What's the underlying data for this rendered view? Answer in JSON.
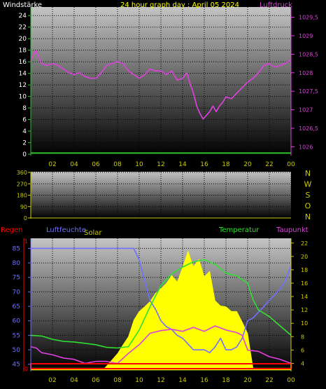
{
  "chart_data": [
    {
      "type": "line",
      "title": "24 hour graph day : April 05 2024",
      "left_axis_label": "Windstärke",
      "right_axis_label": "Luftdruck",
      "x_ticks": [
        "02",
        "04",
        "06",
        "08",
        "10",
        "12",
        "14",
        "16",
        "18",
        "20",
        "22",
        "00"
      ],
      "left_ticks": [
        "0",
        "2",
        "4",
        "6",
        "8",
        "10",
        "12",
        "14",
        "16",
        "18",
        "20",
        "22",
        "24"
      ],
      "right_ticks": [
        "1026",
        "1026,5",
        "1027",
        "1027,5",
        "1028",
        "1028,5",
        "1029",
        "1029,5"
      ],
      "left_ylim": [
        0,
        25
      ],
      "right_ylim": [
        1025.8,
        1029.7
      ],
      "colors": {
        "pressure": "#e040e0",
        "wind": "#30c030",
        "title": "#ffff00",
        "left": "#ffffff"
      },
      "series": [
        {
          "name": "Luftdruck",
          "axis": "right",
          "x": [
            0,
            0.25,
            0.5,
            0.75,
            1,
            1.5,
            2,
            2.5,
            3,
            3.5,
            4,
            4.5,
            5,
            5.5,
            6,
            6.5,
            7,
            7.5,
            8,
            8.5,
            9,
            9.5,
            10,
            10.5,
            11,
            11.5,
            12,
            12.5,
            13,
            13.5,
            14,
            14.4,
            14.7,
            15,
            15.3,
            15.6,
            15.9,
            16.2,
            16.5,
            16.8,
            17.1,
            17.4,
            17.7,
            18,
            18.5,
            19,
            19.5,
            20,
            20.5,
            21,
            21.5,
            22,
            22.5,
            23,
            23.5,
            24
          ],
          "values": [
            1028.3,
            1028.5,
            1028.6,
            1028.4,
            1028.25,
            1028.2,
            1028.25,
            1028.2,
            1028.1,
            1028.0,
            1027.95,
            1028.0,
            1027.9,
            1027.85,
            1027.85,
            1028.0,
            1028.2,
            1028.25,
            1028.3,
            1028.25,
            1028.05,
            1027.95,
            1027.85,
            1027.95,
            1028.1,
            1028.05,
            1028.05,
            1027.95,
            1028.05,
            1027.8,
            1027.85,
            1028.0,
            1027.7,
            1027.45,
            1027.1,
            1026.9,
            1026.75,
            1026.85,
            1026.95,
            1027.1,
            1026.95,
            1027.1,
            1027.2,
            1027.35,
            1027.3,
            1027.45,
            1027.6,
            1027.75,
            1027.85,
            1028.0,
            1028.2,
            1028.25,
            1028.15,
            1028.2,
            1028.25,
            1028.35
          ]
        },
        {
          "name": "Windstärke",
          "axis": "left",
          "x": [
            0,
            24
          ],
          "values": [
            0.2,
            0.2
          ]
        }
      ]
    },
    {
      "type": "line",
      "ticks": [
        "0",
        "90",
        "180",
        "270",
        "360"
      ],
      "ylim": [
        0,
        360
      ],
      "right_labels": [
        "N",
        "W",
        "S",
        "O",
        "N"
      ],
      "x_ticks": [
        "02",
        "04",
        "06",
        "08",
        "10",
        "12",
        "14",
        "16",
        "18",
        "20",
        "22",
        "00"
      ]
    },
    {
      "type": "line",
      "labels": {
        "regen": "Regen",
        "luftfeuchte": "Luftfeuchte",
        "solar": "Solar",
        "temperatur": "Temperatur",
        "taupunkt": "Taupunkt"
      },
      "humidity_ticks": [
        "45",
        "50",
        "55",
        "60",
        "65",
        "70",
        "75",
        "80",
        "85"
      ],
      "humidity_ylim": [
        43,
        88
      ],
      "temp_ticks": [
        "4",
        "6",
        "8",
        "10",
        "12",
        "14",
        "16",
        "18",
        "20",
        "22"
      ],
      "temp_ylim": [
        3,
        22.5
      ],
      "regen_ticks": [
        "0",
        "1"
      ],
      "x_ticks": [
        "02",
        "04",
        "06",
        "08",
        "10",
        "12",
        "14",
        "16",
        "18",
        "20",
        "22",
        "00"
      ],
      "colors": {
        "regen": "#ff0000",
        "humidity": "#7070ff",
        "solar": "#ffff00",
        "temperature": "#30e030",
        "dewpoint": "#e040e0"
      },
      "series": [
        {
          "name": "Luftfeuchte",
          "axis": "humidity",
          "x": [
            0,
            1,
            2,
            3,
            4,
            5,
            6,
            7,
            8,
            9,
            9.5,
            10,
            10.5,
            11,
            11.5,
            12,
            12.5,
            13,
            13.5,
            14,
            14.5,
            15,
            15.5,
            16,
            16.5,
            17,
            17.5,
            18,
            18.5,
            19,
            19.5,
            20,
            20.5,
            21,
            21.5,
            22,
            22.5,
            23,
            23.5,
            24
          ],
          "values": [
            85,
            85,
            85,
            85,
            85,
            85,
            85,
            85,
            85,
            85,
            85,
            81,
            74,
            67,
            64,
            60,
            58,
            57,
            55,
            54,
            52,
            50,
            50,
            50,
            49,
            51,
            54,
            50,
            50,
            51,
            54,
            60,
            61,
            63,
            65,
            67,
            69,
            71,
            74,
            79
          ]
        },
        {
          "name": "Temperatur",
          "axis": "temp",
          "x": [
            0,
            1,
            2,
            3,
            4,
            5,
            6,
            7,
            8,
            9,
            10,
            11,
            12,
            13,
            14,
            15,
            16,
            17,
            18,
            19,
            20,
            20.5,
            21,
            22,
            23,
            24
          ],
          "values": [
            8.2,
            8.1,
            7.6,
            7.3,
            7.2,
            7.0,
            6.8,
            6.4,
            6.3,
            6.5,
            9.0,
            12.5,
            15.6,
            17.4,
            18.4,
            19.2,
            19.5,
            18.8,
            17.5,
            17.1,
            16.0,
            13.5,
            12.0,
            11.0,
            9.6,
            8.2
          ]
        },
        {
          "name": "Taupunkt",
          "axis": "temp",
          "x": [
            0,
            0.5,
            1,
            2,
            3,
            4,
            5,
            6,
            7,
            8,
            9,
            10,
            11,
            12,
            13,
            14,
            15,
            16,
            17,
            18,
            19,
            19.5,
            20,
            21,
            22,
            23,
            24
          ],
          "values": [
            6.5,
            6.3,
            5.6,
            5.3,
            4.8,
            4.6,
            4.0,
            4.3,
            4.3,
            4.0,
            5.5,
            6.8,
            8.5,
            8.9,
            9.1,
            8.8,
            9.4,
            8.8,
            9.6,
            9.0,
            8.6,
            8.2,
            6.0,
            5.8,
            5.0,
            4.6,
            4.0
          ]
        },
        {
          "name": "Solar",
          "axis": "temp",
          "x": [
            0,
            6.8,
            7.2,
            8,
            8.5,
            9,
            9.5,
            10,
            10.5,
            11,
            11.5,
            12,
            12.5,
            13,
            13.5,
            14,
            14.5,
            15,
            15.5,
            16,
            16.5,
            17,
            17.5,
            18,
            18.5,
            19,
            19.5,
            20,
            20.5,
            24
          ],
          "values": [
            3.3,
            3.3,
            4.0,
            5.5,
            6.8,
            8.0,
            10.5,
            11.8,
            12.5,
            13.3,
            14.5,
            15.2,
            16.0,
            17.2,
            16.2,
            18.4,
            20.8,
            18.5,
            19.6,
            17.0,
            17.8,
            13.4,
            12.6,
            12.5,
            11.8,
            11.8,
            10.2,
            8.5,
            3.3,
            3.3
          ]
        },
        {
          "name": "Regen",
          "axis": "regen",
          "x": [
            0,
            24
          ],
          "values": [
            0,
            0
          ]
        }
      ]
    }
  ]
}
